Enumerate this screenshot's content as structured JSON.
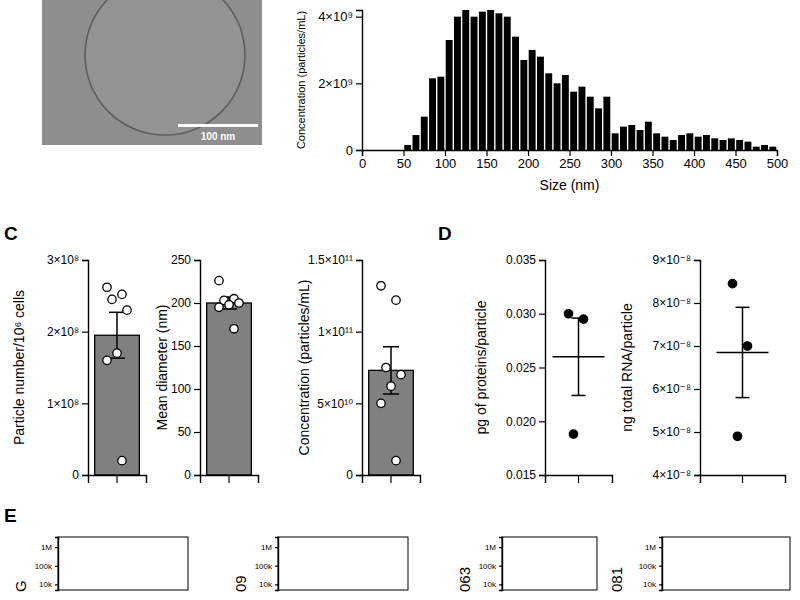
{
  "image": {
    "scale_bar": "100 nm"
  },
  "panel_labels": [
    "C",
    "D",
    "E"
  ],
  "chart_data": [
    {
      "type": "histogram",
      "xlabel": "Size (nm)",
      "ylabel": "Concentration (particles/mL)",
      "color": "#000000",
      "bins": [
        50,
        60,
        70,
        80,
        90,
        100,
        110,
        120,
        130,
        140,
        150,
        160,
        170,
        180,
        190,
        200,
        210,
        220,
        230,
        240,
        250,
        260,
        270,
        280,
        290,
        300,
        310,
        320,
        330,
        340,
        350,
        360,
        370,
        380,
        390,
        400,
        410,
        420,
        430,
        440,
        450,
        460,
        470,
        480,
        490,
        500
      ],
      "values": [
        150000000.0,
        450000000.0,
        1000000000.0,
        2150000000.0,
        2200000000.0,
        3300000000.0,
        4000000000.0,
        4200000000.0,
        4000000000.0,
        4150000000.0,
        4200000000.0,
        4100000000.0,
        4000000000.0,
        3400000000.0,
        2700000000.0,
        3000000000.0,
        2800000000.0,
        2300000000.0,
        2000000000.0,
        2250000000.0,
        1750000000.0,
        1900000000.0,
        1600000000.0,
        1250000000.0,
        1600000000.0,
        500000000.0,
        700000000.0,
        750000000.0,
        600000000.0,
        850000000.0,
        500000000.0,
        400000000.0,
        300000000.0,
        450000000.0,
        500000000.0,
        400000000.0,
        450000000.0,
        350000000.0,
        300000000.0,
        350000000.0,
        300000000.0,
        250000000.0,
        100000000.0,
        150000000.0,
        100000000.0
      ],
      "xlim": [
        0,
        500
      ],
      "xticks": [
        0,
        50,
        100,
        150,
        200,
        250,
        300,
        350,
        400,
        450,
        500
      ],
      "ylim": [
        0,
        4200000000.0
      ],
      "yticks": [
        0,
        {
          "value": 2000000000.0,
          "label": "2×10⁹"
        },
        {
          "value": 4000000000.0,
          "label": "4×10⁹"
        }
      ]
    },
    {
      "type": "bar",
      "ylabel": "Particle number/10⁶ cells",
      "color": "#808080",
      "categories": [
        null
      ],
      "values": [
        195000000.0
      ],
      "error": [
        32000000.0
      ],
      "points": [
        [
          262000000.0,
          252000000.0,
          245000000.0,
          230000000.0,
          170000000.0,
          160000000.0,
          20000000.0
        ]
      ],
      "ylim": [
        0,
        300000000.0
      ],
      "yticks": [
        0,
        {
          "value": 100000000.0,
          "label": "1×10⁸"
        },
        {
          "value": 200000000.0,
          "label": "2×10⁸"
        },
        {
          "value": 300000000.0,
          "label": "3×10⁸"
        }
      ]
    },
    {
      "type": "bar",
      "ylabel": "Mean diameter (nm)",
      "color": "#808080",
      "categories": [
        null
      ],
      "values": [
        200
      ],
      "error": [
        7
      ],
      "points": [
        [
          226,
          205,
          203,
          200,
          198,
          195,
          170
        ]
      ],
      "ylim": [
        0,
        250
      ],
      "yticks": [
        0,
        50,
        100,
        150,
        200,
        250
      ]
    },
    {
      "type": "bar",
      "ylabel": "Concentration (particles/mL)",
      "color": "#808080",
      "categories": [
        null
      ],
      "values": [
        73000000000.0
      ],
      "error": [
        16500000000.0
      ],
      "points": [
        [
          132000000000.0,
          122000000000.0,
          75000000000.0,
          70000000000.0,
          62000000000.0,
          50000000000.0,
          10000000000.0
        ]
      ],
      "ylim": [
        0,
        150000000000.0
      ],
      "yticks": [
        0,
        {
          "value": 50000000000.0,
          "label": "5×10¹⁰"
        },
        {
          "value": 100000000000.0,
          "label": "1×10¹¹"
        },
        {
          "value": 150000000000.0,
          "label": "1.5×10¹¹"
        }
      ]
    },
    {
      "type": "dot",
      "ylabel": "pg of proteins/particle",
      "color": "#000000",
      "categories": [
        null
      ],
      "values": [
        0.026
      ],
      "error": [
        0.0036
      ],
      "points": [
        [
          0.03,
          0.0295,
          0.0188
        ]
      ],
      "ylim": [
        0.015,
        0.035
      ],
      "yticks": [
        0.015,
        {
          "value": 0.02,
          "label": "0.020"
        },
        0.025,
        {
          "value": 0.03,
          "label": "0.030"
        },
        0.035
      ]
    },
    {
      "type": "dot",
      "ylabel": "ng total RNA/particle",
      "color": "#000000",
      "categories": [
        null
      ],
      "values": [
        6.85e-08
      ],
      "error": [
        1.05e-08
      ],
      "points": [
        [
          8.45e-08,
          7e-08,
          4.9e-08
        ]
      ],
      "ylim": [
        4e-08,
        9e-08
      ],
      "yticks": [
        {
          "value": 4e-08,
          "label": "4×10⁻⁸"
        },
        {
          "value": 5e-08,
          "label": "5×10⁻⁸"
        },
        {
          "value": 6e-08,
          "label": "6×10⁻⁸"
        },
        {
          "value": 7e-08,
          "label": "7×10⁻⁸"
        },
        {
          "value": 8e-08,
          "label": "8×10⁻⁸"
        },
        {
          "value": 9e-08,
          "label": "9×10⁻⁸"
        }
      ]
    },
    {
      "type": "scatter",
      "ylabel": "G",
      "log": "y",
      "ylim": [
        5000,
        3500000
      ],
      "yticks": [
        {
          "value": 10000,
          "label": "10k"
        },
        {
          "value": 100000,
          "label": "100k"
        },
        {
          "value": 1000000,
          "label": "1M"
        }
      ]
    },
    {
      "type": "scatter",
      "ylabel": "09",
      "log": "y",
      "ylim": [
        5000,
        3500000
      ],
      "yticks": [
        {
          "value": 10000,
          "label": "10k"
        },
        {
          "value": 100000,
          "label": "100k"
        },
        {
          "value": 1000000,
          "label": "1M"
        }
      ]
    },
    {
      "type": "scatter",
      "ylabel": "063",
      "log": "y",
      "ylim": [
        5000,
        3500000
      ],
      "yticks": [
        {
          "value": 10000,
          "label": "10k"
        },
        {
          "value": 100000,
          "label": "100k"
        },
        {
          "value": 1000000,
          "label": "1M"
        }
      ]
    },
    {
      "type": "scatter",
      "ylabel": "081",
      "log": "y",
      "ylim": [
        5000,
        3500000
      ],
      "yticks": [
        {
          "value": 10000,
          "label": "10k"
        },
        {
          "value": 100000,
          "label": "100k"
        },
        {
          "value": 1000000,
          "label": "1M"
        }
      ]
    }
  ]
}
